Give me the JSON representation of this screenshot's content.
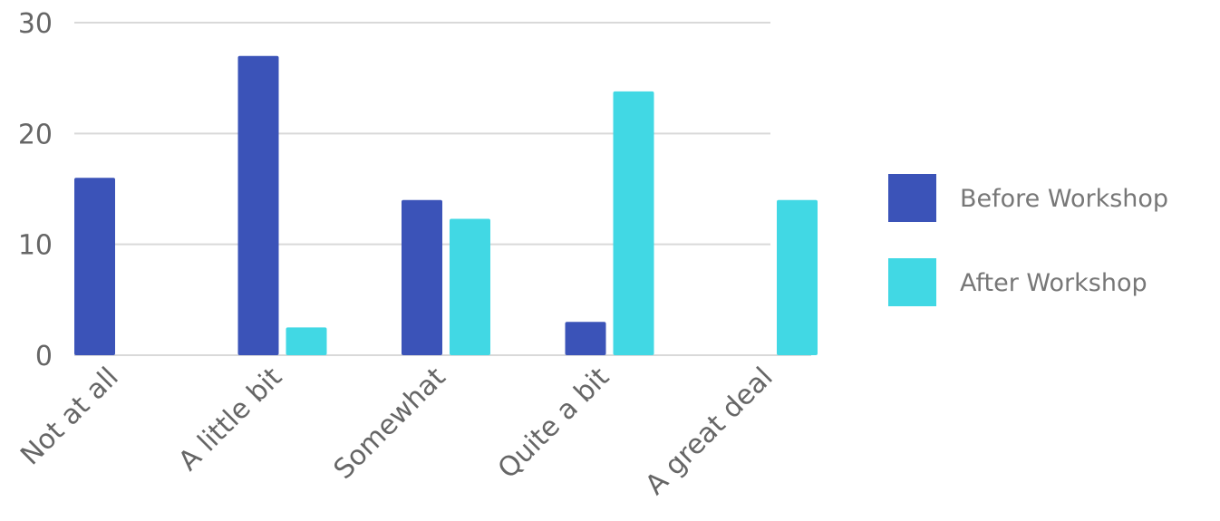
{
  "chart_data": {
    "type": "bar",
    "categories": [
      "Not at all",
      "A little bit",
      "Somewhat",
      "Quite a bit",
      "A great deal"
    ],
    "series": [
      {
        "name": "Before Workshop",
        "color": "#3b53b8",
        "values": [
          16,
          27,
          14,
          3,
          0
        ]
      },
      {
        "name": "After Workshop",
        "color": "#41d8e4",
        "values": [
          0,
          2.5,
          12.3,
          23.8,
          14
        ]
      }
    ],
    "ylim": [
      0,
      30
    ],
    "yticks": [
      "0",
      "10",
      "20",
      "30"
    ],
    "grid": true,
    "legend_position": "right"
  }
}
